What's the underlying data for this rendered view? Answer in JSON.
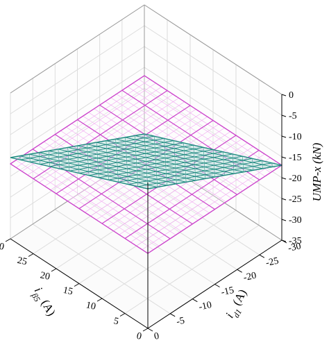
{
  "chart_data": {
    "type": "surface",
    "grid": true,
    "box": true,
    "axes": {
      "x": {
        "title_main": "i",
        "title_sub": "d1",
        "title_unit": "(A)",
        "range": [
          -30,
          0
        ],
        "ticks": [
          0,
          -5,
          -10,
          -15,
          -20,
          -25,
          -30
        ]
      },
      "y": {
        "title_main": "i",
        "title_sub": "β5",
        "title_unit": "(A)",
        "range": [
          0,
          30
        ],
        "ticks": [
          0,
          5,
          10,
          15,
          20,
          25,
          30
        ]
      },
      "z": {
        "title": "UMP-x (kN)",
        "range": [
          -35,
          0
        ],
        "ticks": [
          0,
          -5,
          -10,
          -15,
          -20,
          -25,
          -30,
          -35
        ]
      }
    },
    "series": [
      {
        "mesh": "inclined",
        "color": "#1e8a80",
        "shading": "#bfe6df",
        "x": [
          -30,
          0
        ],
        "y": [
          0,
          30
        ],
        "z_corners": {
          "x0_y0": -1.5,
          "xm30_y0": -17,
          "x0_y30": -15.5,
          "xm30_y30": -31
        },
        "divisions": 14
      },
      {
        "mesh": "flat",
        "color": "#cc44cc",
        "minor_color": "#f0a8f0",
        "x": [
          -30,
          0
        ],
        "y": [
          0,
          30
        ],
        "z": -17,
        "divisions": 6,
        "minor_divisions": 24
      }
    ]
  }
}
